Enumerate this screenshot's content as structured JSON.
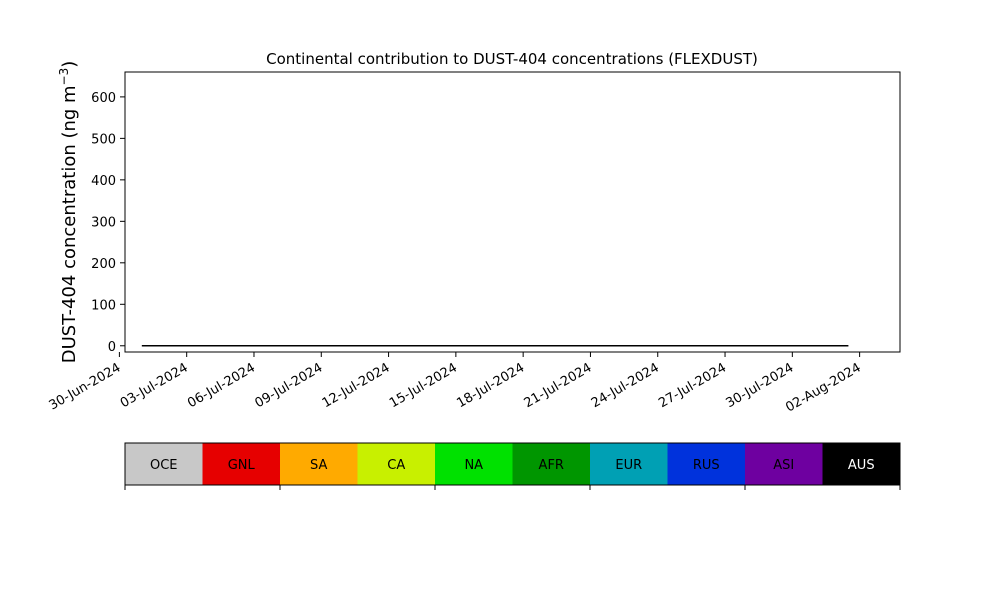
{
  "chart_data": {
    "type": "area",
    "stacked": true,
    "title": "Continental contribution to DUST-404 concentrations (FLEXDUST)",
    "ylabel_main": "DUST-404 concentration (ng m",
    "ylabel_sup": "−3",
    "ylabel_close": ")",
    "ylim": [
      -15,
      660
    ],
    "yticks": [
      0,
      100,
      200,
      300,
      400,
      500,
      600
    ],
    "xlim_days": [
      -0.75,
      33.8
    ],
    "xtick_labels": [
      "30-Jun-2024",
      "03-Jul-2024",
      "06-Jul-2024",
      "09-Jul-2024",
      "12-Jul-2024",
      "15-Jul-2024",
      "18-Jul-2024",
      "21-Jul-2024",
      "24-Jul-2024",
      "27-Jul-2024",
      "30-Jul-2024",
      "02-Aug-2024"
    ],
    "grid": false,
    "legend": {
      "placement": "colorbar-below",
      "entries": [
        {
          "name": "OCE",
          "color": "#c8c8c8",
          "text_color": "#000000"
        },
        {
          "name": "GNL",
          "color": "#e60000",
          "text_color": "#000000"
        },
        {
          "name": "SA",
          "color": "#ffaa00",
          "text_color": "#000000"
        },
        {
          "name": "CA",
          "color": "#c8f000",
          "text_color": "#000000"
        },
        {
          "name": "NA",
          "color": "#00e100",
          "text_color": "#000000"
        },
        {
          "name": "AFR",
          "color": "#009600",
          "text_color": "#000000"
        },
        {
          "name": "EUR",
          "color": "#00a0b4",
          "text_color": "#000000"
        },
        {
          "name": "RUS",
          "color": "#0032dc",
          "text_color": "#000000"
        },
        {
          "name": "ASI",
          "color": "#6e00a0",
          "text_color": "#000000"
        },
        {
          "name": "AUS",
          "color": "#000000",
          "text_color": "#ffffff"
        }
      ]
    },
    "time_axis": {
      "start_date": "2024-07-01",
      "step_days": 0.25
    },
    "series": [
      {
        "name": "OCE",
        "values": [
          0,
          0,
          0,
          0,
          0,
          0,
          0,
          0,
          0,
          0,
          0,
          0,
          0,
          0,
          0,
          0,
          0,
          0,
          0,
          0,
          0,
          0,
          0,
          0,
          0,
          0,
          0,
          0,
          0,
          0,
          0,
          0,
          0,
          0,
          0,
          0,
          0,
          0,
          0,
          0,
          0,
          0,
          0,
          0,
          0,
          0,
          0,
          0,
          0,
          0,
          0,
          0,
          0,
          0,
          0,
          0,
          0,
          0,
          0,
          0,
          0,
          0,
          0,
          0,
          0,
          0,
          0,
          0,
          0,
          0,
          0,
          0,
          0,
          0,
          0,
          0,
          0,
          0,
          0,
          0,
          0,
          0,
          0,
          0,
          0,
          0,
          0,
          0,
          0,
          0,
          0,
          0,
          0,
          0,
          0,
          0,
          0,
          0,
          0,
          0,
          0,
          0,
          0,
          0,
          0,
          0,
          0,
          0,
          0,
          0,
          0,
          0,
          0,
          0,
          0,
          0,
          0,
          0,
          0,
          0,
          0,
          0,
          0,
          0,
          0,
          0,
          0
        ]
      },
      {
        "name": "GNL",
        "values": [
          0,
          0,
          0,
          0,
          0,
          0,
          0,
          0,
          0,
          0,
          0,
          0,
          0,
          0,
          0,
          0,
          0,
          0,
          0,
          0,
          0,
          0,
          0,
          0,
          0,
          0,
          0,
          0,
          0,
          0,
          0,
          0,
          0,
          0,
          0,
          0,
          0,
          0,
          0,
          0,
          0,
          0,
          0,
          0,
          0,
          0,
          0,
          0,
          0,
          0,
          0,
          0,
          0,
          0,
          0,
          0,
          0,
          0,
          0,
          0,
          0,
          0,
          0,
          0,
          0,
          0,
          0,
          0,
          0,
          0,
          0,
          0,
          0,
          0,
          0,
          0,
          0,
          0,
          0,
          0,
          0,
          0,
          0,
          0,
          0,
          0,
          0,
          0,
          0,
          0,
          0,
          0,
          0,
          0,
          0,
          0,
          0,
          0,
          0,
          0,
          0,
          0,
          0,
          0,
          0,
          0,
          0,
          0,
          0,
          0,
          0,
          0,
          0,
          0,
          0,
          0,
          0,
          0,
          0,
          0,
          0,
          0,
          0,
          0,
          0,
          0,
          0
        ]
      },
      {
        "name": "SA",
        "values": [
          0,
          0,
          0,
          0,
          0,
          0,
          0,
          0,
          0,
          0,
          0,
          0,
          0,
          0,
          0,
          0,
          0,
          0,
          0,
          0,
          0,
          0,
          0,
          0,
          0,
          0,
          0,
          0,
          0,
          0,
          0,
          0,
          0,
          0,
          0,
          0,
          0,
          0,
          0,
          0,
          0,
          0,
          0,
          0,
          0,
          0,
          0,
          0,
          0,
          0,
          0,
          0,
          0,
          0,
          0,
          0,
          0,
          0,
          0,
          0,
          0,
          0,
          0,
          0,
          0,
          0,
          0,
          0,
          0,
          0,
          0,
          0,
          0,
          0,
          0,
          0,
          0,
          0,
          0,
          0,
          0,
          0,
          0,
          0,
          0,
          0,
          0,
          0,
          0,
          0,
          0,
          0,
          0,
          0,
          0,
          0,
          0,
          0,
          0,
          0,
          0,
          0,
          0,
          0,
          0,
          0,
          0,
          0,
          0,
          0,
          0,
          0,
          0,
          0,
          0,
          0,
          0,
          0,
          0,
          0,
          0,
          0,
          0,
          0,
          0,
          0,
          0
        ]
      },
      {
        "name": "CA",
        "values": [
          0,
          0,
          0,
          0,
          0,
          0,
          0,
          0,
          0,
          0,
          0,
          0,
          0,
          0,
          0,
          0,
          0,
          0,
          0,
          0,
          0,
          0,
          0,
          0,
          0,
          0,
          0,
          0,
          0,
          0,
          0,
          0,
          0,
          0,
          0,
          0,
          0,
          0,
          0,
          0,
          0,
          0,
          0,
          0,
          0,
          0,
          0,
          0,
          0,
          0,
          0,
          0,
          0,
          0,
          0,
          0,
          0,
          0,
          0,
          0,
          0,
          0,
          0,
          0,
          0,
          0,
          0,
          0,
          0,
          0,
          0,
          0,
          0,
          0,
          0,
          0,
          0,
          0,
          0,
          0,
          0,
          0,
          0,
          0,
          0,
          0,
          0,
          0,
          0,
          0,
          0,
          0,
          0,
          0,
          0,
          0,
          0,
          0,
          0,
          0,
          0,
          0,
          0,
          0,
          0,
          0,
          0,
          0,
          0,
          0,
          0,
          0,
          0,
          0,
          0,
          0,
          0,
          0,
          0,
          0,
          0,
          0,
          0,
          0,
          0,
          0,
          0
        ]
      },
      {
        "name": "NA",
        "values": [
          0,
          0,
          0,
          0,
          0,
          0,
          0,
          0,
          0,
          0,
          0,
          0,
          0,
          0,
          0,
          0,
          0,
          0,
          0,
          0,
          0,
          0,
          0,
          0,
          0,
          0,
          0,
          0,
          0,
          0,
          0,
          0,
          0,
          0,
          0,
          0,
          0,
          0,
          0,
          0,
          0,
          0,
          0,
          0,
          0,
          0,
          0,
          0,
          0,
          0,
          0,
          0,
          0,
          0,
          0,
          0,
          0,
          0,
          0,
          0,
          0,
          0,
          0,
          0,
          0,
          0,
          0,
          0,
          0,
          0,
          0,
          0,
          0,
          0,
          0,
          0,
          0,
          0,
          0,
          0,
          0,
          0,
          0,
          0,
          0,
          0,
          0,
          0,
          0,
          0,
          0,
          0,
          0,
          0,
          0,
          0,
          0,
          0,
          0,
          0,
          0,
          0,
          0,
          0,
          0,
          0,
          0,
          0,
          0,
          0,
          0,
          0,
          0,
          0,
          0,
          0,
          0,
          0,
          0,
          0,
          0,
          0,
          0,
          0,
          0,
          0,
          0
        ]
      },
      {
        "name": "AFR",
        "values": [
          0,
          0,
          0,
          0,
          0,
          0,
          0,
          0,
          0,
          0,
          0,
          0,
          0,
          0,
          0,
          0,
          0,
          0,
          0,
          0,
          0,
          0,
          0,
          0,
          0,
          0,
          0,
          0,
          0,
          0,
          0,
          0,
          0,
          0,
          0,
          0,
          0,
          0,
          0,
          0,
          0,
          0,
          0,
          0,
          0,
          0,
          0,
          0,
          0,
          0,
          0,
          0,
          0,
          0,
          0,
          0,
          0,
          0,
          0,
          0,
          0,
          0,
          0,
          0,
          0,
          0,
          0,
          0,
          0,
          0,
          0,
          0,
          0,
          0,
          0,
          0,
          0,
          0,
          0,
          0,
          0,
          0,
          0,
          0,
          0,
          0,
          0,
          0,
          0,
          0,
          0,
          0,
          0,
          0,
          0,
          0,
          0,
          0,
          0,
          0,
          0,
          0,
          0,
          0,
          0,
          0,
          0,
          0,
          0,
          0,
          0,
          0,
          0,
          0,
          0,
          0,
          0,
          0,
          0,
          0,
          0,
          0,
          0,
          0,
          0,
          0,
          0
        ]
      },
      {
        "name": "EUR",
        "values": [
          0,
          0,
          0,
          0,
          0,
          0,
          0,
          0,
          0,
          0,
          0,
          0,
          0,
          0,
          0,
          0,
          0,
          0,
          0,
          0,
          0,
          0,
          0,
          0,
          0,
          0,
          0,
          0,
          0,
          0,
          0,
          0,
          0,
          0,
          0,
          0,
          0,
          0,
          0,
          0,
          0,
          0,
          0,
          0,
          0,
          0,
          0,
          0,
          0,
          0,
          0,
          0,
          0,
          0,
          0,
          0,
          0,
          0,
          0,
          0,
          0,
          0,
          0,
          0,
          0,
          0,
          0,
          0,
          0,
          0,
          0,
          0,
          0,
          0,
          0,
          0,
          0,
          0,
          0,
          0,
          0,
          0,
          0,
          0,
          0,
          0,
          0,
          0,
          0,
          0,
          0,
          0,
          0,
          0,
          0,
          0,
          0,
          0,
          0,
          0,
          0,
          0,
          0,
          0,
          0,
          0,
          0,
          0,
          0,
          0,
          0,
          0,
          0,
          0,
          0,
          0,
          0,
          0,
          0,
          0,
          0,
          0,
          0,
          0,
          0,
          0,
          0
        ]
      },
      {
        "name": "RUS",
        "values": [
          0,
          0,
          0,
          0,
          0,
          0,
          0,
          0,
          0,
          0,
          0,
          0,
          0,
          0,
          0,
          0,
          0,
          0,
          0,
          0,
          0,
          0,
          0,
          0,
          0,
          0,
          0,
          0,
          0,
          0,
          0,
          0,
          0,
          0,
          0,
          0,
          0,
          0,
          0,
          0,
          0,
          0,
          0,
          0,
          0,
          0,
          0,
          0,
          0,
          0,
          0,
          0,
          0,
          0,
          0,
          0,
          0,
          0,
          0,
          0,
          0,
          0,
          0,
          0,
          0,
          0,
          0,
          0,
          0,
          0,
          0,
          0,
          0,
          0,
          0,
          0,
          0,
          0,
          0,
          0,
          0,
          0,
          0,
          0,
          0,
          0,
          0,
          0,
          0,
          0,
          0,
          0,
          0,
          0,
          0,
          0,
          0,
          0,
          0,
          0,
          0,
          0,
          0,
          0,
          0,
          0,
          0,
          0,
          0,
          0,
          0,
          0,
          0,
          0,
          0,
          0,
          0,
          0,
          0,
          0,
          0,
          0,
          0,
          0,
          0,
          0,
          0
        ]
      },
      {
        "name": "ASI",
        "values": [
          0,
          0,
          0,
          0,
          0,
          0,
          0,
          0,
          0,
          0,
          0,
          0,
          0,
          0,
          0,
          0,
          0,
          0,
          0,
          0,
          0,
          0,
          0,
          0,
          0,
          0,
          0,
          0,
          0,
          0,
          0,
          0,
          0,
          0,
          0,
          0,
          0,
          0,
          0,
          0,
          0,
          0,
          0,
          0,
          0,
          0,
          0,
          0,
          0,
          0,
          0,
          0,
          0,
          0,
          0,
          0,
          0,
          0,
          0,
          0,
          0,
          0,
          0,
          0,
          0,
          0,
          0,
          0,
          0,
          0,
          0,
          0,
          0,
          0,
          0,
          0,
          0,
          0,
          0,
          0,
          0,
          0,
          0,
          0,
          0,
          0,
          0,
          0,
          0,
          0,
          0,
          0,
          0,
          0,
          0,
          0,
          0,
          0,
          0,
          0,
          0,
          0,
          0,
          0,
          0,
          0,
          0,
          0,
          0,
          0,
          0,
          0,
          0,
          0,
          0,
          0,
          0,
          0,
          0,
          0,
          0,
          0,
          0,
          0,
          0,
          0,
          0
        ]
      },
      {
        "name": "AUS",
        "values": [
          0,
          0,
          0,
          0,
          0,
          0,
          0,
          0,
          0,
          0,
          0,
          0,
          0,
          0,
          0,
          0,
          0,
          0,
          0,
          0,
          0,
          0,
          0,
          0,
          0,
          0,
          0,
          0,
          0,
          0,
          0,
          0,
          0,
          0,
          0,
          0,
          0,
          0,
          0,
          0,
          0,
          0,
          0,
          0,
          0,
          0,
          0,
          0,
          0,
          0,
          0,
          0,
          0,
          0,
          0,
          0,
          0,
          0,
          0,
          0,
          0,
          0,
          0,
          0,
          0,
          0,
          0,
          0,
          0,
          0,
          0,
          0,
          0,
          0,
          0,
          0,
          0,
          0,
          0,
          0,
          0,
          0,
          0,
          0,
          0,
          0,
          0,
          0,
          0,
          0,
          0,
          0,
          0,
          0,
          0,
          0,
          0,
          0,
          0,
          0,
          0,
          0,
          0,
          0,
          0,
          0,
          0,
          0,
          0,
          0,
          0,
          0,
          0,
          0,
          0,
          0,
          0,
          0,
          0,
          0,
          0,
          0,
          0,
          0,
          0,
          0,
          0
        ]
      }
    ]
  }
}
